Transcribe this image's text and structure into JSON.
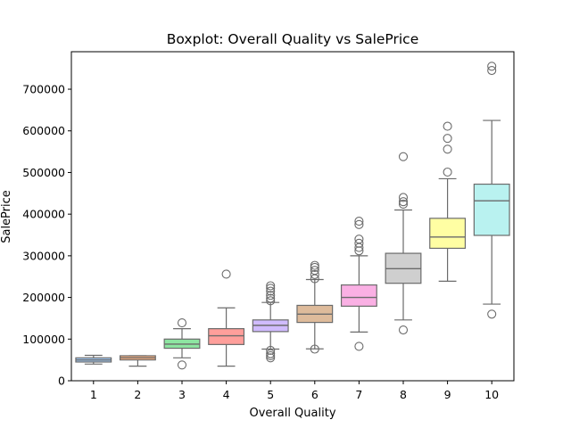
{
  "chart_data": {
    "type": "box",
    "title": "Boxplot: Overall Quality vs SalePrice",
    "xlabel": "Overall Quality",
    "ylabel": "SalePrice",
    "ylim": [
      0,
      790000
    ],
    "yticks": [
      0,
      100000,
      200000,
      300000,
      400000,
      500000,
      600000,
      700000
    ],
    "ytick_labels": [
      "0",
      "100000",
      "200000",
      "300000",
      "400000",
      "500000",
      "600000",
      "700000"
    ],
    "grid": false,
    "colors": {
      "median_whisker": "#6b6b6b",
      "axes": "#000000"
    },
    "categories": [
      "1",
      "2",
      "3",
      "4",
      "5",
      "6",
      "7",
      "8",
      "9",
      "10"
    ],
    "boxes": [
      {
        "category": "1",
        "color": "#a1c9f4",
        "whislo": 40000,
        "q1": 45000,
        "median": 50000,
        "q3": 55000,
        "whishi": 61000,
        "fliers": []
      },
      {
        "category": "2",
        "color": "#ffb482",
        "whislo": 35000,
        "q1": 50000,
        "median": 55000,
        "q3": 60000,
        "whishi": 60000,
        "fliers": []
      },
      {
        "category": "3",
        "color": "#8de5a1",
        "whislo": 55000,
        "q1": 78000,
        "median": 88000,
        "q3": 100000,
        "whishi": 125000,
        "fliers": [
          139000,
          37900
        ]
      },
      {
        "category": "4",
        "color": "#ff9f9b",
        "whislo": 35000,
        "q1": 87000,
        "median": 108000,
        "q3": 125000,
        "whishi": 175000,
        "fliers": [
          256000
        ]
      },
      {
        "category": "5",
        "color": "#d0bbff",
        "whislo": 76000,
        "q1": 118000,
        "median": 133000,
        "q3": 146000,
        "whishi": 188000,
        "fliers": [
          228000,
          222000,
          215000,
          205000,
          198000,
          192000,
          73000,
          65000,
          60000,
          55000
        ]
      },
      {
        "category": "6",
        "color": "#debb9b",
        "whislo": 76500,
        "q1": 140000,
        "median": 160000,
        "q3": 181000,
        "whishi": 243000,
        "fliers": [
          277000,
          272000,
          265000,
          255000,
          245000,
          76000
        ]
      },
      {
        "category": "7",
        "color": "#fab0e4",
        "whislo": 117000,
        "q1": 179000,
        "median": 200000,
        "q3": 230000,
        "whishi": 300000,
        "fliers": [
          383000,
          375000,
          340000,
          330000,
          320000,
          312000,
          82500
        ]
      },
      {
        "category": "8",
        "color": "#cfcfcf",
        "whislo": 146000,
        "q1": 234000,
        "median": 269000,
        "q3": 306000,
        "whishi": 410000,
        "fliers": [
          538000,
          440000,
          430000,
          424000,
          122000
        ]
      },
      {
        "category": "9",
        "color": "#fffea3",
        "whislo": 239000,
        "q1": 318000,
        "median": 345000,
        "q3": 390000,
        "whishi": 485000,
        "fliers": [
          611000,
          582000,
          556000,
          501000
        ]
      },
      {
        "category": "10",
        "color": "#b9f2f0",
        "whislo": 184000,
        "q1": 349000,
        "median": 432000,
        "q3": 472000,
        "whishi": 625000,
        "fliers": [
          755000,
          745000,
          160000
        ]
      }
    ]
  }
}
